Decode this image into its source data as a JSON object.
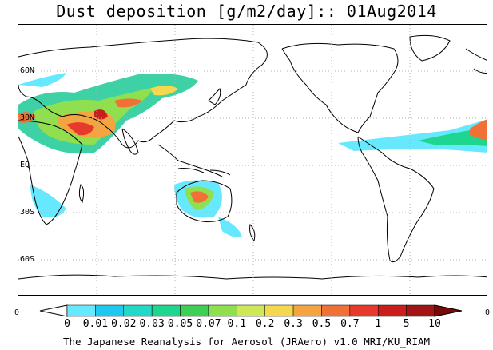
{
  "map": {
    "title": "Dust deposition [g/m2/day]:: 01Aug2014",
    "latitude_labels": [
      "60N",
      "30N",
      "EQ",
      "30S",
      "60S"
    ],
    "edge_labels": {
      "left": "0",
      "right": "0"
    }
  },
  "colorbar": {
    "ticks": [
      "0",
      "0.01",
      "0.02",
      "0.03",
      "0.05",
      "0.07",
      "0.1",
      "0.2",
      "0.3",
      "0.5",
      "0.7",
      "1",
      "5",
      "10"
    ],
    "colors": [
      "#ffffff",
      "#66e8ff",
      "#1ec8ef",
      "#22d8c8",
      "#1ed68e",
      "#3ecf55",
      "#8fdf4f",
      "#cfe85a",
      "#f5d84e",
      "#f5a540",
      "#f07037",
      "#e83a2c",
      "#cc1d1d",
      "#a31414",
      "#7a0a0a"
    ]
  },
  "footer": {
    "credit": "The Japanese Reanalysis for Aerosol (JRAero) v1.0 MRI/KU_RIAM"
  }
}
